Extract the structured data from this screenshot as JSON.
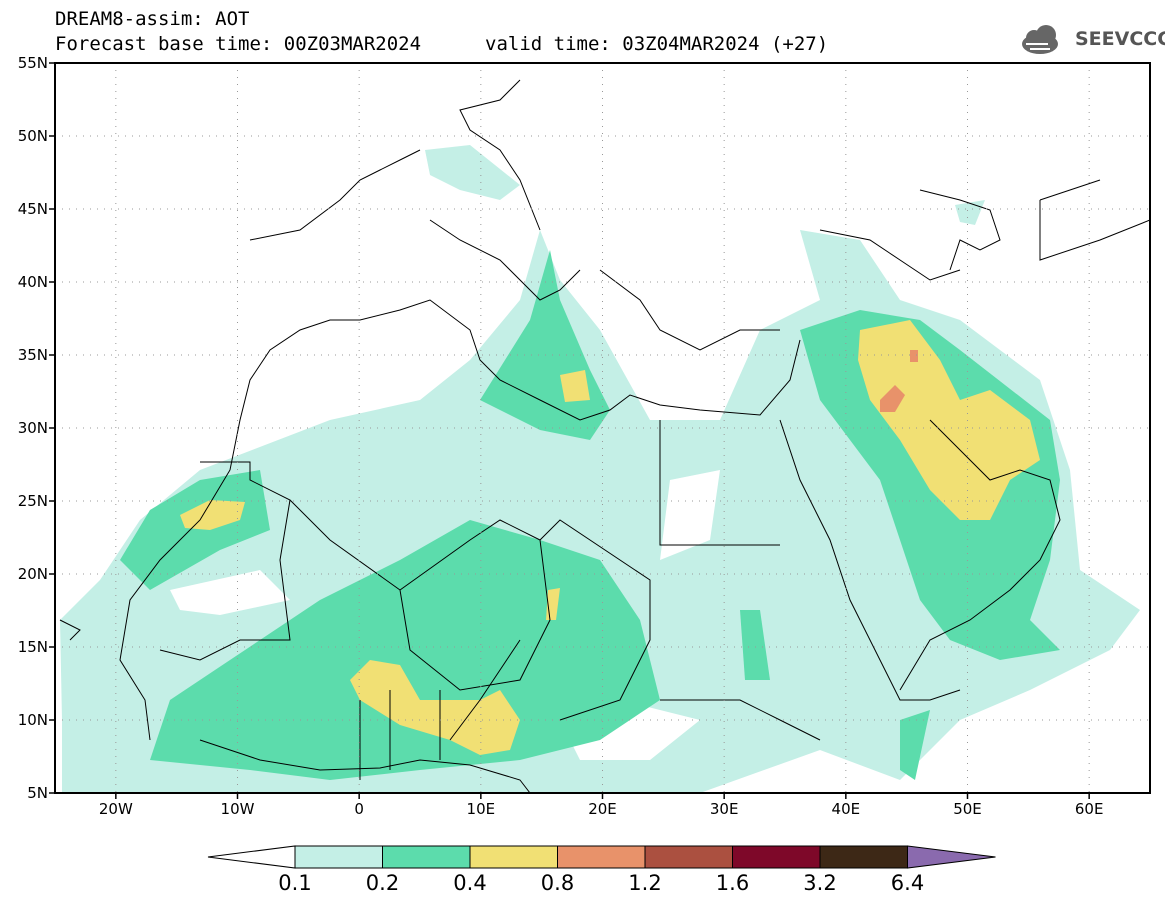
{
  "header": {
    "line1": "DREAM8-assim: AOT",
    "line2_left": "Forecast base time: 00Z03MAR2024",
    "line2_right": "valid time: 03Z04MAR2024 (+27)"
  },
  "logo": {
    "text": "SEEVCCC",
    "icon": "cloud-icon"
  },
  "map": {
    "lon_range": [
      -25,
      65
    ],
    "lat_range": [
      5,
      55
    ],
    "lat_labels": [
      "55N",
      "50N",
      "45N",
      "40N",
      "35N",
      "30N",
      "25N",
      "20N",
      "15N",
      "10N",
      "5N"
    ],
    "lat_values": [
      55,
      50,
      45,
      40,
      35,
      30,
      25,
      20,
      15,
      10,
      5
    ],
    "lon_labels": [
      "20W",
      "10W",
      "0",
      "10E",
      "20E",
      "30E",
      "40E",
      "50E",
      "60E"
    ],
    "lon_values": [
      -20,
      -10,
      0,
      10,
      20,
      30,
      40,
      50,
      60
    ],
    "grid": "dotted"
  },
  "colorbar": {
    "levels": [
      "0.1",
      "0.2",
      "0.4",
      "0.8",
      "1.2",
      "1.6",
      "3.2",
      "6.4"
    ],
    "colors": [
      "#ffffff",
      "#c4efe6",
      "#5cdcac",
      "#f1e074",
      "#e8926a",
      "#ab5040",
      "#7e0829",
      "#3d2816",
      "#8a6aae"
    ]
  }
}
